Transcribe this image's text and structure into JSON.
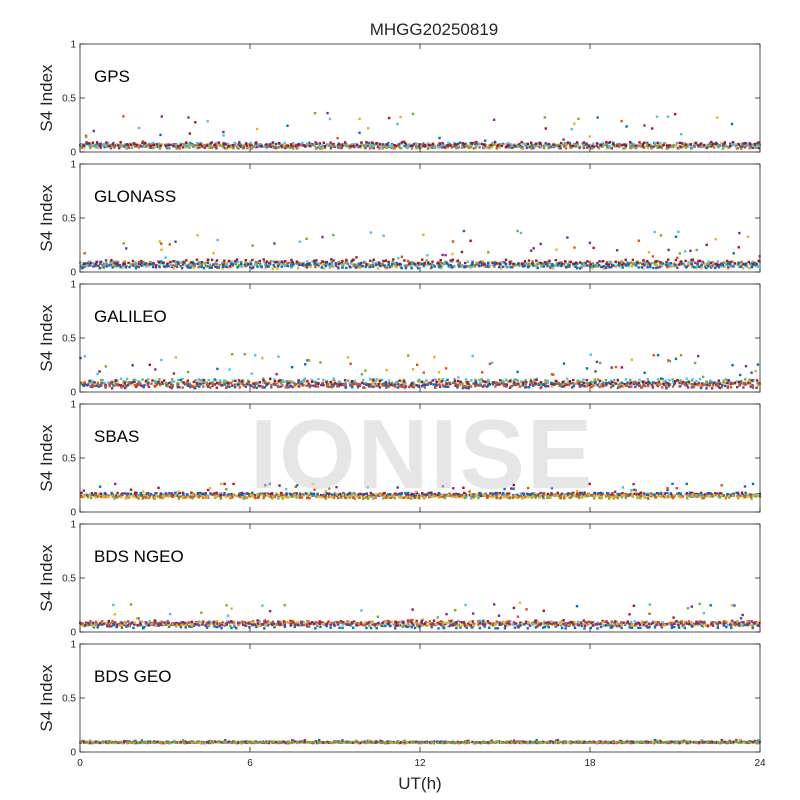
{
  "chart_data": {
    "type": "scatter",
    "title": "MHGG20250819",
    "xlabel": "UT(h)",
    "ylabel": "S4 Index",
    "xlim": [
      0,
      24
    ],
    "ylim": [
      0,
      1
    ],
    "x_ticks": [
      "0",
      "6",
      "12",
      "18",
      "24"
    ],
    "y_ticks": [
      "0",
      "0.5",
      "1"
    ],
    "watermark": "IONISE",
    "series_colors": [
      "#0072BD",
      "#D95319",
      "#EDB120",
      "#7E2F8E",
      "#77AC30",
      "#4DBEEE",
      "#A2142F"
    ],
    "panels": [
      {
        "name": "GPS",
        "baseline": 0.06,
        "spread": 0.04,
        "peak": 0.36
      },
      {
        "name": "GLONASS",
        "baseline": 0.07,
        "spread": 0.05,
        "peak": 0.38
      },
      {
        "name": "GALILEO",
        "baseline": 0.08,
        "spread": 0.05,
        "peak": 0.35
      },
      {
        "name": "SBAS",
        "baseline": 0.15,
        "spread": 0.03,
        "peak": 0.26
      },
      {
        "name": "BDS NGEO",
        "baseline": 0.07,
        "spread": 0.04,
        "peak": 0.27
      },
      {
        "name": "BDS GEO",
        "baseline": 0.09,
        "spread": 0.01,
        "peak": 0.11
      }
    ]
  }
}
